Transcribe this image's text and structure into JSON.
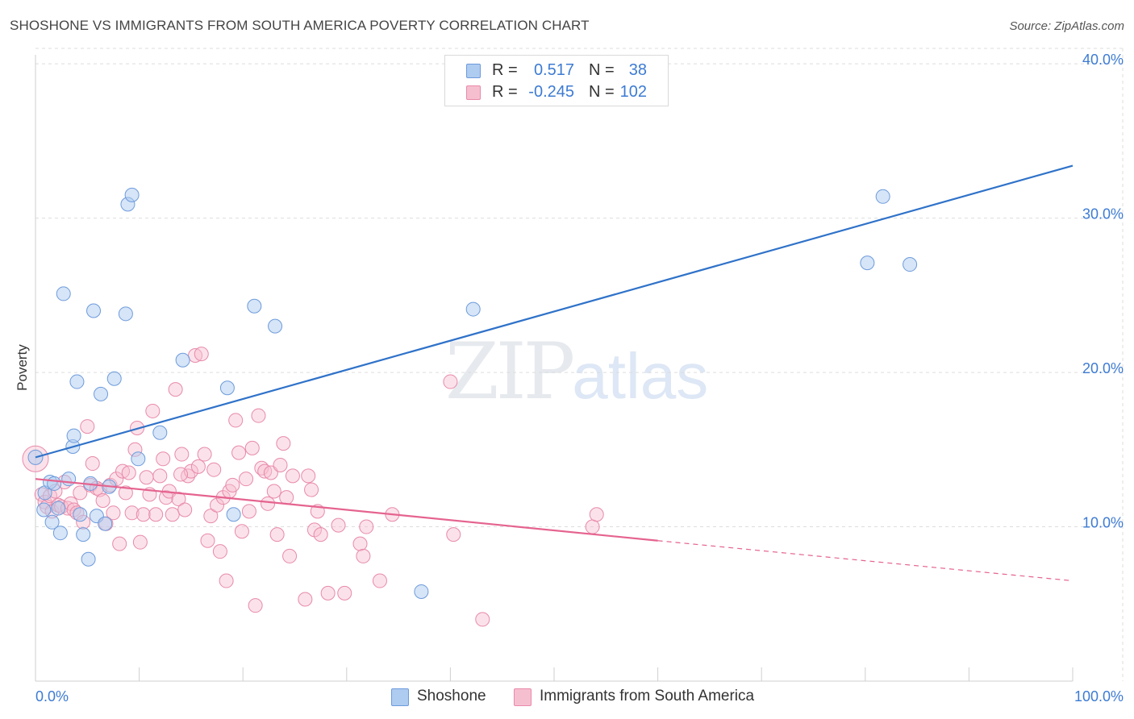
{
  "header": {
    "title": "SHOSHONE VS IMMIGRANTS FROM SOUTH AMERICA POVERTY CORRELATION CHART",
    "source": "Source: ZipAtlas.com"
  },
  "watermark": {
    "zip": "ZIP",
    "atlas": "atlas"
  },
  "legend_top": {
    "rows": [
      {
        "r_label": "R =",
        "r_value": "0.517",
        "n_label": "N =",
        "n_value": "38"
      },
      {
        "r_label": "R =",
        "r_value": "-0.245",
        "n_label": "N =",
        "n_value": "102"
      }
    ]
  },
  "legend_bottom": {
    "items": [
      {
        "label": "Shoshone"
      },
      {
        "label": "Immigrants from South America"
      }
    ]
  },
  "colors": {
    "blue_fill": "#aecbf0",
    "blue_stroke": "#6d9bdc",
    "blue_line": "#2f72c9",
    "pink_fill": "#f6bfd0",
    "pink_stroke": "#e88aa9",
    "pink_line": "#e5638f",
    "grid": "#dddddd",
    "axis_label": "#3d7bd3"
  },
  "chart_data": {
    "type": "scatter",
    "title": "SHOSHONE VS IMMIGRANTS FROM SOUTH AMERICA POVERTY CORRELATION CHART",
    "xlabel": "",
    "ylabel": "Poverty",
    "xlim": [
      0,
      100
    ],
    "ylim": [
      0,
      41
    ],
    "x_tick_labels": [
      "0.0%",
      "100.0%"
    ],
    "y_ticks": [
      10,
      20,
      30,
      40
    ],
    "y_tick_labels": [
      "10.0%",
      "20.0%",
      "30.0%",
      "40.0%"
    ],
    "grid": true,
    "series": [
      {
        "name": "Shoshone",
        "R": 0.517,
        "N": 38,
        "trend": {
          "x": [
            0,
            100
          ],
          "y": [
            14.5,
            33.4
          ]
        },
        "points": [
          [
            0,
            14.5
          ],
          [
            0.8,
            11.1
          ],
          [
            0.9,
            12.2
          ],
          [
            1.4,
            12.9
          ],
          [
            1.6,
            10.3
          ],
          [
            1.8,
            12.8
          ],
          [
            2.2,
            11.2
          ],
          [
            2.4,
            9.6
          ],
          [
            2.7,
            25.1
          ],
          [
            3.2,
            13.1
          ],
          [
            3.6,
            15.2
          ],
          [
            3.7,
            15.9
          ],
          [
            4.0,
            19.4
          ],
          [
            4.3,
            10.8
          ],
          [
            4.6,
            9.5
          ],
          [
            5.1,
            7.9
          ],
          [
            5.3,
            12.8
          ],
          [
            5.6,
            24.0
          ],
          [
            5.9,
            10.7
          ],
          [
            6.3,
            18.6
          ],
          [
            6.7,
            10.2
          ],
          [
            7.1,
            12.6
          ],
          [
            7.6,
            19.6
          ],
          [
            8.7,
            23.8
          ],
          [
            8.9,
            30.9
          ],
          [
            9.3,
            31.5
          ],
          [
            9.9,
            14.4
          ],
          [
            12.0,
            16.1
          ],
          [
            14.2,
            20.8
          ],
          [
            18.5,
            19.0
          ],
          [
            19.1,
            10.8
          ],
          [
            21.1,
            24.3
          ],
          [
            23.1,
            23.0
          ],
          [
            37.2,
            5.8
          ],
          [
            42.2,
            24.1
          ],
          [
            80.2,
            27.1
          ],
          [
            84.3,
            27.0
          ],
          [
            81.7,
            31.4
          ]
        ]
      },
      {
        "name": "Immigrants from South America",
        "R": -0.245,
        "N": 102,
        "trend": {
          "x": [
            0,
            60
          ],
          "y": [
            13.1,
            9.1
          ]
        },
        "trend_dashed": {
          "x": [
            60,
            100
          ],
          "y": [
            9.1,
            6.5
          ]
        },
        "points": [
          [
            0,
            14.4
          ],
          [
            0.6,
            12.1
          ],
          [
            0.9,
            11.6
          ],
          [
            1.1,
            11.3
          ],
          [
            1.4,
            12.0
          ],
          [
            1.6,
            11.0
          ],
          [
            1.9,
            12.3
          ],
          [
            2.2,
            11.4
          ],
          [
            2.5,
            11.3
          ],
          [
            2.8,
            12.9
          ],
          [
            3.1,
            11.2
          ],
          [
            3.4,
            11.5
          ],
          [
            3.7,
            11.1
          ],
          [
            4.0,
            10.9
          ],
          [
            4.3,
            12.2
          ],
          [
            4.6,
            10.3
          ],
          [
            5.0,
            16.5
          ],
          [
            5.3,
            12.7
          ],
          [
            5.5,
            14.1
          ],
          [
            5.9,
            12.5
          ],
          [
            6.2,
            12.4
          ],
          [
            6.5,
            11.7
          ],
          [
            6.8,
            10.2
          ],
          [
            7.2,
            12.7
          ],
          [
            7.5,
            10.9
          ],
          [
            7.8,
            13.1
          ],
          [
            8.1,
            8.9
          ],
          [
            8.4,
            13.6
          ],
          [
            8.7,
            12.2
          ],
          [
            9.0,
            13.5
          ],
          [
            9.3,
            10.9
          ],
          [
            9.6,
            15.0
          ],
          [
            9.8,
            16.4
          ],
          [
            10.1,
            9.0
          ],
          [
            10.4,
            10.8
          ],
          [
            10.7,
            13.2
          ],
          [
            11.0,
            12.1
          ],
          [
            11.3,
            17.5
          ],
          [
            11.6,
            10.8
          ],
          [
            12.0,
            13.3
          ],
          [
            12.3,
            14.4
          ],
          [
            12.6,
            11.9
          ],
          [
            12.9,
            12.3
          ],
          [
            13.2,
            10.8
          ],
          [
            13.5,
            18.9
          ],
          [
            13.8,
            11.8
          ],
          [
            14.1,
            14.7
          ],
          [
            14.4,
            11.1
          ],
          [
            14.7,
            13.3
          ],
          [
            15.0,
            13.6
          ],
          [
            15.4,
            21.1
          ],
          [
            15.7,
            13.9
          ],
          [
            16.0,
            21.2
          ],
          [
            16.3,
            14.7
          ],
          [
            16.6,
            9.1
          ],
          [
            16.9,
            10.7
          ],
          [
            17.2,
            13.7
          ],
          [
            17.5,
            11.4
          ],
          [
            17.8,
            8.4
          ],
          [
            18.1,
            11.9
          ],
          [
            18.4,
            6.5
          ],
          [
            18.7,
            12.3
          ],
          [
            19.0,
            12.7
          ],
          [
            19.3,
            16.9
          ],
          [
            19.6,
            14.8
          ],
          [
            19.9,
            9.7
          ],
          [
            20.3,
            13.1
          ],
          [
            20.6,
            11.0
          ],
          [
            20.9,
            15.1
          ],
          [
            21.2,
            4.9
          ],
          [
            21.5,
            17.2
          ],
          [
            21.8,
            13.8
          ],
          [
            22.1,
            13.6
          ],
          [
            22.4,
            11.5
          ],
          [
            22.7,
            13.5
          ],
          [
            23.0,
            12.3
          ],
          [
            23.3,
            9.5
          ],
          [
            23.6,
            14.0
          ],
          [
            23.9,
            15.4
          ],
          [
            24.2,
            11.9
          ],
          [
            24.5,
            8.1
          ],
          [
            24.8,
            13.3
          ],
          [
            26.0,
            5.3
          ],
          [
            26.3,
            13.3
          ],
          [
            26.6,
            12.4
          ],
          [
            26.9,
            9.8
          ],
          [
            27.2,
            11.0
          ],
          [
            27.5,
            9.5
          ],
          [
            28.2,
            5.7
          ],
          [
            29.2,
            10.1
          ],
          [
            29.8,
            5.7
          ],
          [
            31.3,
            8.9
          ],
          [
            31.6,
            8.1
          ],
          [
            31.9,
            10.0
          ],
          [
            33.2,
            6.5
          ],
          [
            34.4,
            10.8
          ],
          [
            40.0,
            19.4
          ],
          [
            40.3,
            9.5
          ],
          [
            43.1,
            4.0
          ],
          [
            53.7,
            10.0
          ],
          [
            54.1,
            10.8
          ],
          [
            14.0,
            13.4
          ]
        ]
      }
    ]
  }
}
